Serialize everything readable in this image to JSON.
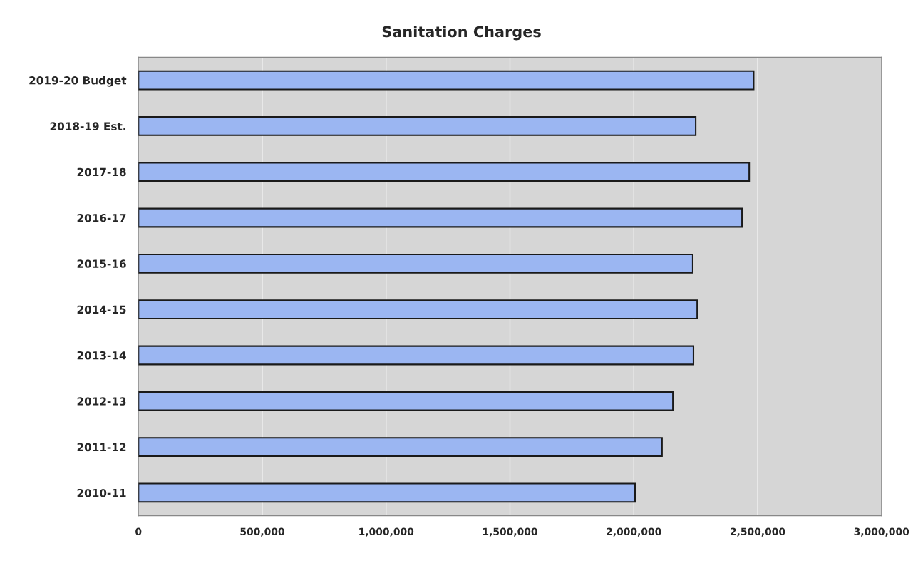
{
  "chart_data": {
    "type": "bar",
    "orientation": "horizontal",
    "title": "Sanitation Charges",
    "categories": [
      "2019-20 Budget",
      "2018-19 Est.",
      "2017-18",
      "2016-17",
      "2015-16",
      "2014-15",
      "2013-14",
      "2012-13",
      "2011-12",
      "2010-11"
    ],
    "values": [
      2484000,
      2250000,
      2466000,
      2437000,
      2238000,
      2256000,
      2241000,
      2158000,
      2114000,
      2005000
    ],
    "color": "#9bb6f2",
    "xlim": [
      0,
      3000000
    ],
    "xticks": [
      {
        "value": 0,
        "label": "0"
      },
      {
        "value": 500000,
        "label": "500,000"
      },
      {
        "value": 1000000,
        "label": "1,000,000"
      },
      {
        "value": 1500000,
        "label": "1,500,000"
      },
      {
        "value": 2000000,
        "label": "2,000,000"
      },
      {
        "value": 2500000,
        "label": "2,500,000"
      },
      {
        "value": 3000000,
        "label": "3,000,000"
      }
    ],
    "grid": "x",
    "legend": false
  }
}
